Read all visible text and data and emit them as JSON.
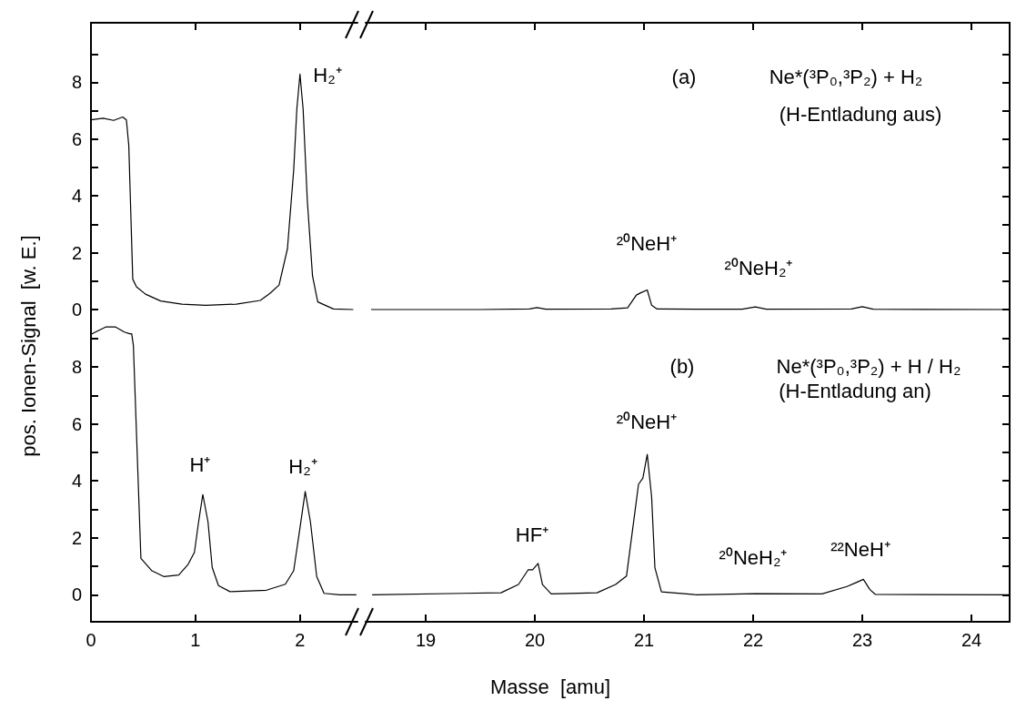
{
  "chart_data": [
    {
      "type": "line",
      "color": "#000000",
      "tick_labels": "y",
      "xlim": [
        0,
        2.55
      ],
      "xticks": [
        0,
        1,
        2
      ],
      "ylim": [
        -0.32,
        10.1
      ],
      "yticks": [
        0,
        {
          "value": 1,
          "label": null
        },
        2,
        {
          "value": 3,
          "label": null
        },
        4,
        {
          "value": 5,
          "label": null
        },
        6,
        {
          "value": 7,
          "label": null
        },
        8,
        {
          "value": 9,
          "label": null
        }
      ],
      "ylabel": "pos. Ionen-Signal  [w. E.]",
      "x": [
        0,
        0.116,
        0.217,
        0.304,
        0.339,
        0.362,
        0.4,
        0.435,
        0.522,
        0.667,
        0.87,
        1.1,
        1.39,
        1.62,
        1.71,
        1.8,
        1.88,
        1.94,
        1.97,
        2.0,
        2.03,
        2.07,
        2.12,
        2.17,
        2.32,
        2.51
      ],
      "values": [
        6.68,
        6.74,
        6.66,
        6.78,
        6.68,
        5.77,
        1.07,
        0.8,
        0.54,
        0.3,
        0.19,
        0.15,
        0.19,
        0.32,
        0.56,
        0.86,
        2.14,
        4.92,
        7.06,
        8.29,
        7.06,
        3.85,
        1.18,
        0.27,
        0.02,
        0
      ],
      "annotations": [
        "H₂⁺"
      ]
    },
    {
      "type": "line",
      "color": "#000000",
      "tick_labels": false,
      "xlim": [
        18.45,
        24.35
      ],
      "xticks": [
        19,
        20,
        21,
        22,
        23,
        24
      ],
      "ylim": [
        -0.32,
        10.1
      ],
      "yticks": [
        0,
        {
          "value": 1,
          "label": null
        },
        2,
        {
          "value": 3,
          "label": null
        },
        4,
        {
          "value": 5,
          "label": null
        },
        6,
        {
          "value": 7,
          "label": null
        },
        8,
        {
          "value": 9,
          "label": null
        }
      ],
      "x": [
        18.5,
        19.5,
        19.95,
        20.02,
        20.1,
        20.7,
        20.85,
        20.93,
        20.97,
        21.03,
        21.07,
        21.12,
        21.9,
        22.02,
        22.12,
        22.9,
        23.0,
        23.1,
        24.35
      ],
      "values": [
        0,
        0,
        0.02,
        0.07,
        0.01,
        0.02,
        0.06,
        0.51,
        0.59,
        0.69,
        0.15,
        0.02,
        0.01,
        0.09,
        0.01,
        0.02,
        0.1,
        0.01,
        0
      ],
      "annotations": [
        "²⁰NeH⁺",
        "²⁰NeH₂⁺",
        "(a)",
        "Ne*(³P₀,³P₂) + H₂",
        "(H-Entladung aus)"
      ]
    },
    {
      "type": "line",
      "color": "#000000",
      "xlim": [
        0,
        2.55
      ],
      "xticks": [
        0,
        1,
        2
      ],
      "ylim": [
        -0.95,
        9.7
      ],
      "yticks": [
        0,
        {
          "value": 1,
          "label": null
        },
        2,
        {
          "value": 3,
          "label": null
        },
        4,
        {
          "value": 5,
          "label": null
        },
        6,
        {
          "value": 7,
          "label": null
        },
        8,
        {
          "value": 9,
          "label": null
        }
      ],
      "x": [
        0,
        0.043,
        0.145,
        0.232,
        0.32,
        0.37,
        0.39,
        0.406,
        0.478,
        0.58,
        0.696,
        0.84,
        0.93,
        0.99,
        1.03,
        1.07,
        1.12,
        1.16,
        1.22,
        1.33,
        1.68,
        1.86,
        1.94,
        2.0,
        2.05,
        2.1,
        2.16,
        2.23,
        2.38,
        2.54
      ],
      "values": [
        9.15,
        9.23,
        9.41,
        9.41,
        9.23,
        9.17,
        9.17,
        8.75,
        1.28,
        0.85,
        0.64,
        0.69,
        1.07,
        1.49,
        2.56,
        3.52,
        2.56,
        0.96,
        0.32,
        0.11,
        0.16,
        0.37,
        0.85,
        2.35,
        3.63,
        2.56,
        0.64,
        0.05,
        0,
        0
      ],
      "annotations": [
        "H⁺",
        "H₂⁺"
      ]
    },
    {
      "type": "line",
      "color": "#000000",
      "tick_labels": "x",
      "xlim": [
        18.45,
        24.35
      ],
      "xticks": [
        19,
        20,
        21,
        22,
        23,
        24
      ],
      "ylim": [
        -0.95,
        9.7
      ],
      "yticks": [
        0,
        {
          "value": 1,
          "label": null
        },
        2,
        {
          "value": 3,
          "label": null
        },
        4,
        {
          "value": 5,
          "label": null
        },
        6,
        {
          "value": 7,
          "label": null
        },
        8,
        {
          "value": 9,
          "label": null
        }
      ],
      "xlabel": "Masse  [amu]",
      "x": [
        18.51,
        19.69,
        19.85,
        19.94,
        19.98,
        20.03,
        20.07,
        20.15,
        20.57,
        20.74,
        20.84,
        20.91,
        20.95,
        20.99,
        21.03,
        21.07,
        21.1,
        21.16,
        21.48,
        22.02,
        22.63,
        22.86,
        22.94,
        23.01,
        23.07,
        23.12,
        24.35
      ],
      "values": [
        0,
        0.07,
        0.36,
        0.88,
        0.88,
        1.1,
        0.36,
        0.03,
        0.07,
        0.36,
        0.66,
        2.71,
        3.88,
        4.1,
        4.93,
        3.44,
        0.95,
        0.1,
        0,
        0.04,
        0.03,
        0.29,
        0.42,
        0.54,
        0.18,
        0.01,
        0
      ],
      "annotations": [
        "HF⁺",
        "²⁰NeH⁺",
        "²⁰NeH₂⁺",
        "²²NeH⁺",
        "(b)",
        "Ne*(³P₀,³P₂) + H / H₂",
        "(H-Entladung an)"
      ]
    }
  ]
}
